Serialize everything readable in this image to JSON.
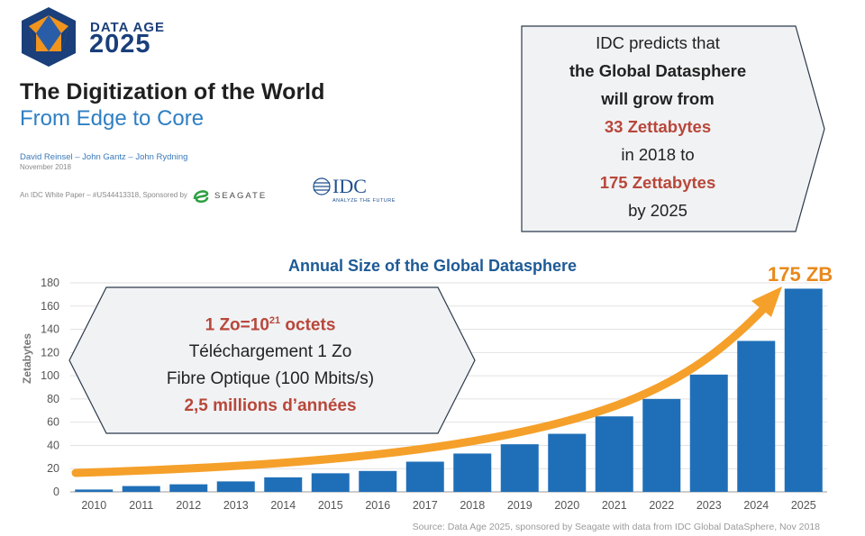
{
  "header": {
    "brand_line1": "DATA AGE",
    "brand_line2": "2025",
    "title": "The Digitization of the World",
    "subtitle": "From Edge to Core",
    "authors": "David Reinsel – John Gantz – John Rydning",
    "date": "November 2018",
    "whitepaper": "An IDC White Paper – #US44413318, Sponsored by",
    "sponsor": "SEAGATE",
    "idc": "IDC",
    "idc_tagline": "ANALYZE THE FUTURE"
  },
  "callout_idc": {
    "line1": "IDC predicts that",
    "line2": "the Global Datasphere",
    "line3": "will grow from",
    "line4": "33 Zettabytes",
    "line5": "in 2018 to",
    "line6": "175 Zettabytes",
    "line7": "by 2025"
  },
  "callout_zo": {
    "line1_base": "1 Zo=10",
    "line1_sup": "21",
    "line1_tail": " octets",
    "line2": "Téléchargement 1 Zo",
    "line3": "Fibre Optique  (100 Mbits/s)",
    "line4": "2,5 millions d’années"
  },
  "label_175": "175 ZB",
  "source": "Source: Data Age 2025, sponsored by Seagate with data from IDC Global DataSphere, Nov 2018",
  "colors": {
    "bar": "#1f6fb8",
    "arrow": "#f5a02a",
    "title": "#1d5a96",
    "accent_red": "#b8473a"
  },
  "chart_data": {
    "type": "bar",
    "title": "Annual Size of the Global Datasphere",
    "xlabel": "",
    "ylabel": "Zetabytes",
    "ylim": [
      0,
      180
    ],
    "yticks": [
      0,
      20,
      40,
      60,
      80,
      100,
      120,
      140,
      160,
      180
    ],
    "grid": true,
    "categories": [
      "2010",
      "2011",
      "2012",
      "2013",
      "2014",
      "2015",
      "2016",
      "2017",
      "2018",
      "2019",
      "2020",
      "2021",
      "2022",
      "2023",
      "2024",
      "2025"
    ],
    "values": [
      2,
      5,
      6.5,
      9,
      12.5,
      16,
      18,
      26,
      33,
      41,
      50,
      65,
      80,
      101,
      130,
      175
    ],
    "trend_arrow": true
  }
}
